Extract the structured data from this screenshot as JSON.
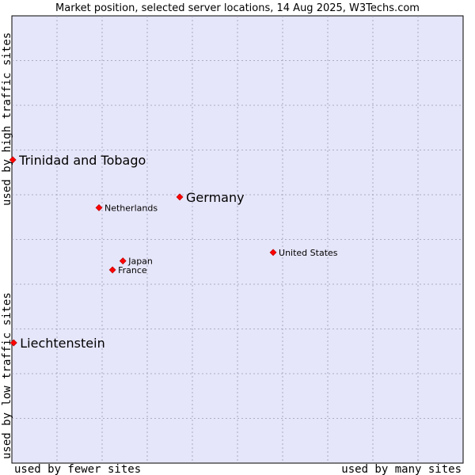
{
  "chart_data": {
    "type": "scatter",
    "title": "Market position, selected server locations, 14 Aug 2025, W3Techs.com",
    "xlabel_left": "used by fewer sites",
    "xlabel_right": "used by many sites",
    "ylabel_top": "used by high traffic sites",
    "ylabel_bottom": "used by low traffic sites",
    "xlim": [
      0,
      100
    ],
    "ylim": [
      0,
      100
    ],
    "grid": true,
    "colors": {
      "plot_background": "#e6e6fa",
      "grid": "#9999b3",
      "point": "#ff0000"
    },
    "points": [
      {
        "name": "Trinidad and Tobago",
        "x": 0.2,
        "y": 67.8,
        "size": "large"
      },
      {
        "name": "Germany",
        "x": 37.2,
        "y": 59.5,
        "size": "large"
      },
      {
        "name": "Netherlands",
        "x": 19.3,
        "y": 57.1,
        "size": "small"
      },
      {
        "name": "United States",
        "x": 57.9,
        "y": 47.1,
        "size": "small"
      },
      {
        "name": "Japan",
        "x": 24.6,
        "y": 45.2,
        "size": "small"
      },
      {
        "name": "France",
        "x": 22.3,
        "y": 43.2,
        "size": "small"
      },
      {
        "name": "Liechtenstein",
        "x": 0.4,
        "y": 26.9,
        "size": "large"
      }
    ]
  }
}
